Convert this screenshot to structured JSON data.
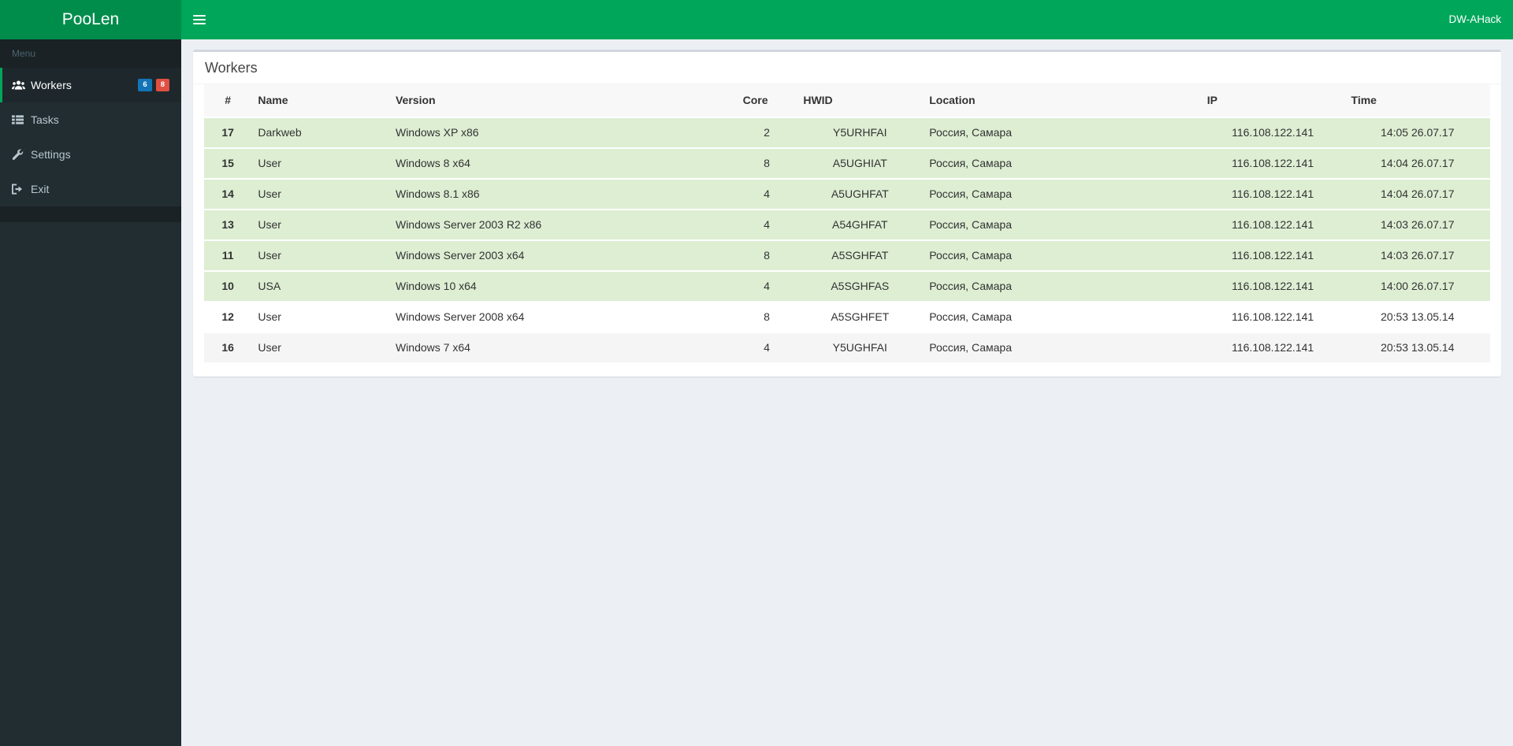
{
  "navbar": {
    "brand": "PooLen",
    "user_label": "DW-AHack",
    "toggle_icon": "hamburger-icon"
  },
  "sidebar": {
    "menu_header": "Menu",
    "items": [
      {
        "label": "Workers",
        "icon": "users-icon",
        "active": true,
        "badges": [
          {
            "text": "6",
            "color": "#1375b8"
          },
          {
            "text": "8",
            "color": "#e14f42"
          }
        ]
      },
      {
        "label": "Tasks",
        "icon": "list-icon",
        "active": false,
        "badges": []
      },
      {
        "label": "Settings",
        "icon": "wrench-icon",
        "active": false,
        "badges": []
      },
      {
        "label": "Exit",
        "icon": "sign-out-icon",
        "active": false,
        "badges": []
      }
    ]
  },
  "main": {
    "card_title": "Workers",
    "table": {
      "columns": [
        {
          "key": "id",
          "label": "#"
        },
        {
          "key": "name",
          "label": "Name"
        },
        {
          "key": "version",
          "label": "Version"
        },
        {
          "key": "core",
          "label": "Core"
        },
        {
          "key": "hwid",
          "label": "HWID"
        },
        {
          "key": "location",
          "label": "Location"
        },
        {
          "key": "ip",
          "label": "IP"
        },
        {
          "key": "time",
          "label": "Time"
        }
      ],
      "rows": [
        {
          "id": "17",
          "name": "Darkweb",
          "version": "Windows XP x86",
          "core": "2",
          "hwid": "Y5URHFAI",
          "location": "Россия, Самара",
          "ip": "116.108.122.141",
          "time": "14:05 26.07.17",
          "online": true
        },
        {
          "id": "15",
          "name": "User",
          "version": "Windows 8 x64",
          "core": "8",
          "hwid": "A5UGHIAT",
          "location": "Россия, Самара",
          "ip": "116.108.122.141",
          "time": "14:04 26.07.17",
          "online": true
        },
        {
          "id": "14",
          "name": "User",
          "version": "Windows 8.1 x86",
          "core": "4",
          "hwid": "A5UGHFAT",
          "location": "Россия, Самара",
          "ip": "116.108.122.141",
          "time": "14:04 26.07.17",
          "online": true
        },
        {
          "id": "13",
          "name": "User",
          "version": "Windows Server 2003 R2 x86",
          "core": "4",
          "hwid": "A54GHFAT",
          "location": "Россия, Самара",
          "ip": "116.108.122.141",
          "time": "14:03 26.07.17",
          "online": true
        },
        {
          "id": "11",
          "name": "User",
          "version": "Windows Server 2003 x64",
          "core": "8",
          "hwid": "A5SGHFAT",
          "location": "Россия, Самара",
          "ip": "116.108.122.141",
          "time": "14:03 26.07.17",
          "online": true
        },
        {
          "id": "10",
          "name": "USA",
          "version": "Windows 10 x64",
          "core": "4",
          "hwid": "A5SGHFAS",
          "location": "Россия, Самара",
          "ip": "116.108.122.141",
          "time": "14:00 26.07.17",
          "online": true
        },
        {
          "id": "12",
          "name": "User",
          "version": "Windows Server 2008 x64",
          "core": "8",
          "hwid": "A5SGHFET",
          "location": "Россия, Самара",
          "ip": "116.108.122.141",
          "time": "20:53 13.05.14",
          "online": false
        },
        {
          "id": "16",
          "name": "User",
          "version": "Windows 7 x64",
          "core": "4",
          "hwid": "Y5UGHFAI",
          "location": "Россия, Самара",
          "ip": "116.108.122.141",
          "time": "20:53 13.05.14",
          "online": false
        }
      ]
    }
  },
  "colors": {
    "navbar_bg": "#00a65a",
    "logo_bg": "#008d4c",
    "sidebar_bg": "#222d32",
    "sidebar_header_bg": "#1a2226",
    "active_item_bg": "#1e282c",
    "accent": "#00a65a",
    "online_row_bg": "#ddeed3",
    "badge_blue": "#1375b8",
    "badge_red": "#e14f42",
    "page_bg": "#ecf0f5"
  }
}
